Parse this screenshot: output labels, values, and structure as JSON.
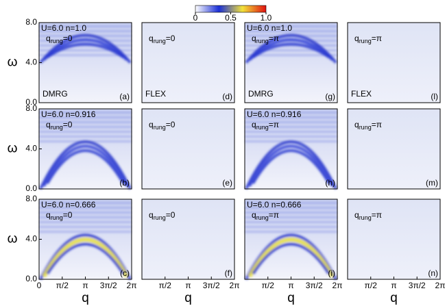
{
  "chart_data": [
    {
      "type": "heatmap",
      "method": "DMRG",
      "params": "U=6.0 n=1.0",
      "q_rung": [
        "q",
        "rung",
        "=0"
      ],
      "panel": "(a)",
      "ylabel": "ω",
      "ylim": [
        0,
        8
      ],
      "yticks": [
        {
          "value": 0,
          "label": "0.0"
        },
        {
          "value": 4,
          "label": "4.0"
        },
        {
          "value": 8,
          "label": "8.0"
        }
      ],
      "xlim": [
        0,
        6.2832
      ]
    },
    {
      "type": "heatmap",
      "method": "FLEX",
      "q_rung": [
        "q",
        "rung",
        "=0"
      ],
      "panel": "(d)",
      "ylim": [
        0,
        8
      ],
      "xlim": [
        0,
        6.2832
      ]
    },
    {
      "type": "heatmap",
      "method": "DMRG",
      "params": "U=6.0 n=1.0",
      "q_rung": [
        "q",
        "rung",
        "=π"
      ],
      "panel": "(g)",
      "ylim": [
        0,
        8
      ],
      "xlim": [
        0,
        6.2832
      ]
    },
    {
      "type": "heatmap",
      "method": "FLEX",
      "q_rung": [
        "q",
        "rung",
        "=π"
      ],
      "panel": "(l)",
      "ylim": [
        0,
        8
      ],
      "xlim": [
        0,
        6.2832
      ]
    },
    {
      "type": "heatmap",
      "params": "U=6.0 n=0.916",
      "q_rung": [
        "q",
        "rung",
        "=0"
      ],
      "panel": "(b)",
      "ylabel": "ω",
      "ylim": [
        0,
        8
      ],
      "yticks": [
        {
          "value": 0,
          "label": "0.0"
        },
        {
          "value": 4,
          "label": "4.0"
        },
        {
          "value": 8,
          "label": "8.0"
        }
      ],
      "xlim": [
        0,
        6.2832
      ]
    },
    {
      "type": "heatmap",
      "q_rung": [
        "q",
        "rung",
        "=0"
      ],
      "panel": "(e)",
      "ylim": [
        0,
        8
      ],
      "xlim": [
        0,
        6.2832
      ]
    },
    {
      "type": "heatmap",
      "params": "U=6.0 n=0.916",
      "q_rung": [
        "q",
        "rung",
        "=π"
      ],
      "panel": "(h)",
      "ylim": [
        0,
        8
      ],
      "xlim": [
        0,
        6.2832
      ]
    },
    {
      "type": "heatmap",
      "q_rung": [
        "q",
        "rung",
        "=π"
      ],
      "panel": "(m)",
      "ylim": [
        0,
        8
      ],
      "xlim": [
        0,
        6.2832
      ]
    },
    {
      "type": "heatmap",
      "params": "U=6.0 n=0.666",
      "q_rung": [
        "q",
        "rung",
        "=0"
      ],
      "panel": "(c)",
      "ylabel": "ω",
      "ylim": [
        0,
        8
      ],
      "yticks": [
        {
          "value": 0,
          "label": "0.0"
        },
        {
          "value": 4,
          "label": "4.0"
        },
        {
          "value": 8,
          "label": "8.0"
        }
      ],
      "xlim": [
        0,
        6.2832
      ],
      "xlabel": "q",
      "xticks": [
        {
          "value": 0,
          "label": "0"
        },
        {
          "value": 1.5708,
          "label": "π/2"
        },
        {
          "value": 3.1416,
          "label": "π"
        },
        {
          "value": 4.7124,
          "label": "3π/2"
        },
        {
          "value": 6.2832,
          "label": "2π"
        }
      ]
    },
    {
      "type": "heatmap",
      "q_rung": [
        "q",
        "rung",
        "=0"
      ],
      "panel": "(f)",
      "ylim": [
        0,
        8
      ],
      "xlim": [
        0,
        6.2832
      ],
      "xlabel": "q",
      "xticks": [
        {
          "value": 1.5708,
          "label": "π/2"
        },
        {
          "value": 3.1416,
          "label": "π"
        },
        {
          "value": 4.7124,
          "label": "3π/2"
        },
        {
          "value": 6.2832,
          "label": "2π"
        }
      ]
    },
    {
      "type": "heatmap",
      "params": "U=6.0 n=0.666",
      "q_rung": [
        "q",
        "rung",
        "=π"
      ],
      "panel": "(i)",
      "ylim": [
        0,
        8
      ],
      "xlim": [
        0,
        6.2832
      ],
      "xlabel": "q",
      "xticks": [
        {
          "value": 1.5708,
          "label": "π/2"
        },
        {
          "value": 3.1416,
          "label": "π"
        },
        {
          "value": 4.7124,
          "label": "3π/2"
        },
        {
          "value": 6.2832,
          "label": "2π"
        }
      ]
    },
    {
      "type": "heatmap",
      "q_rung": [
        "q",
        "rung",
        "=π"
      ],
      "panel": "(n)",
      "ylim": [
        0,
        8
      ],
      "xlim": [
        0,
        6.2832
      ],
      "xlabel": "q",
      "xticks": [
        {
          "value": 1.5708,
          "label": "π/2"
        },
        {
          "value": 3.1416,
          "label": "π"
        },
        {
          "value": 4.7124,
          "label": "3π/2"
        },
        {
          "value": 6.2832,
          "label": "2π"
        }
      ]
    },
    {
      "type": "colorbar",
      "xlim": [
        0,
        1
      ],
      "xticks": [
        0,
        0.5,
        {
          "value": 1,
          "label": "1.0"
        }
      ],
      "colors": [
        "#ffffff",
        "#1a2fd6",
        "#f2e23a",
        "#e01010"
      ]
    }
  ]
}
